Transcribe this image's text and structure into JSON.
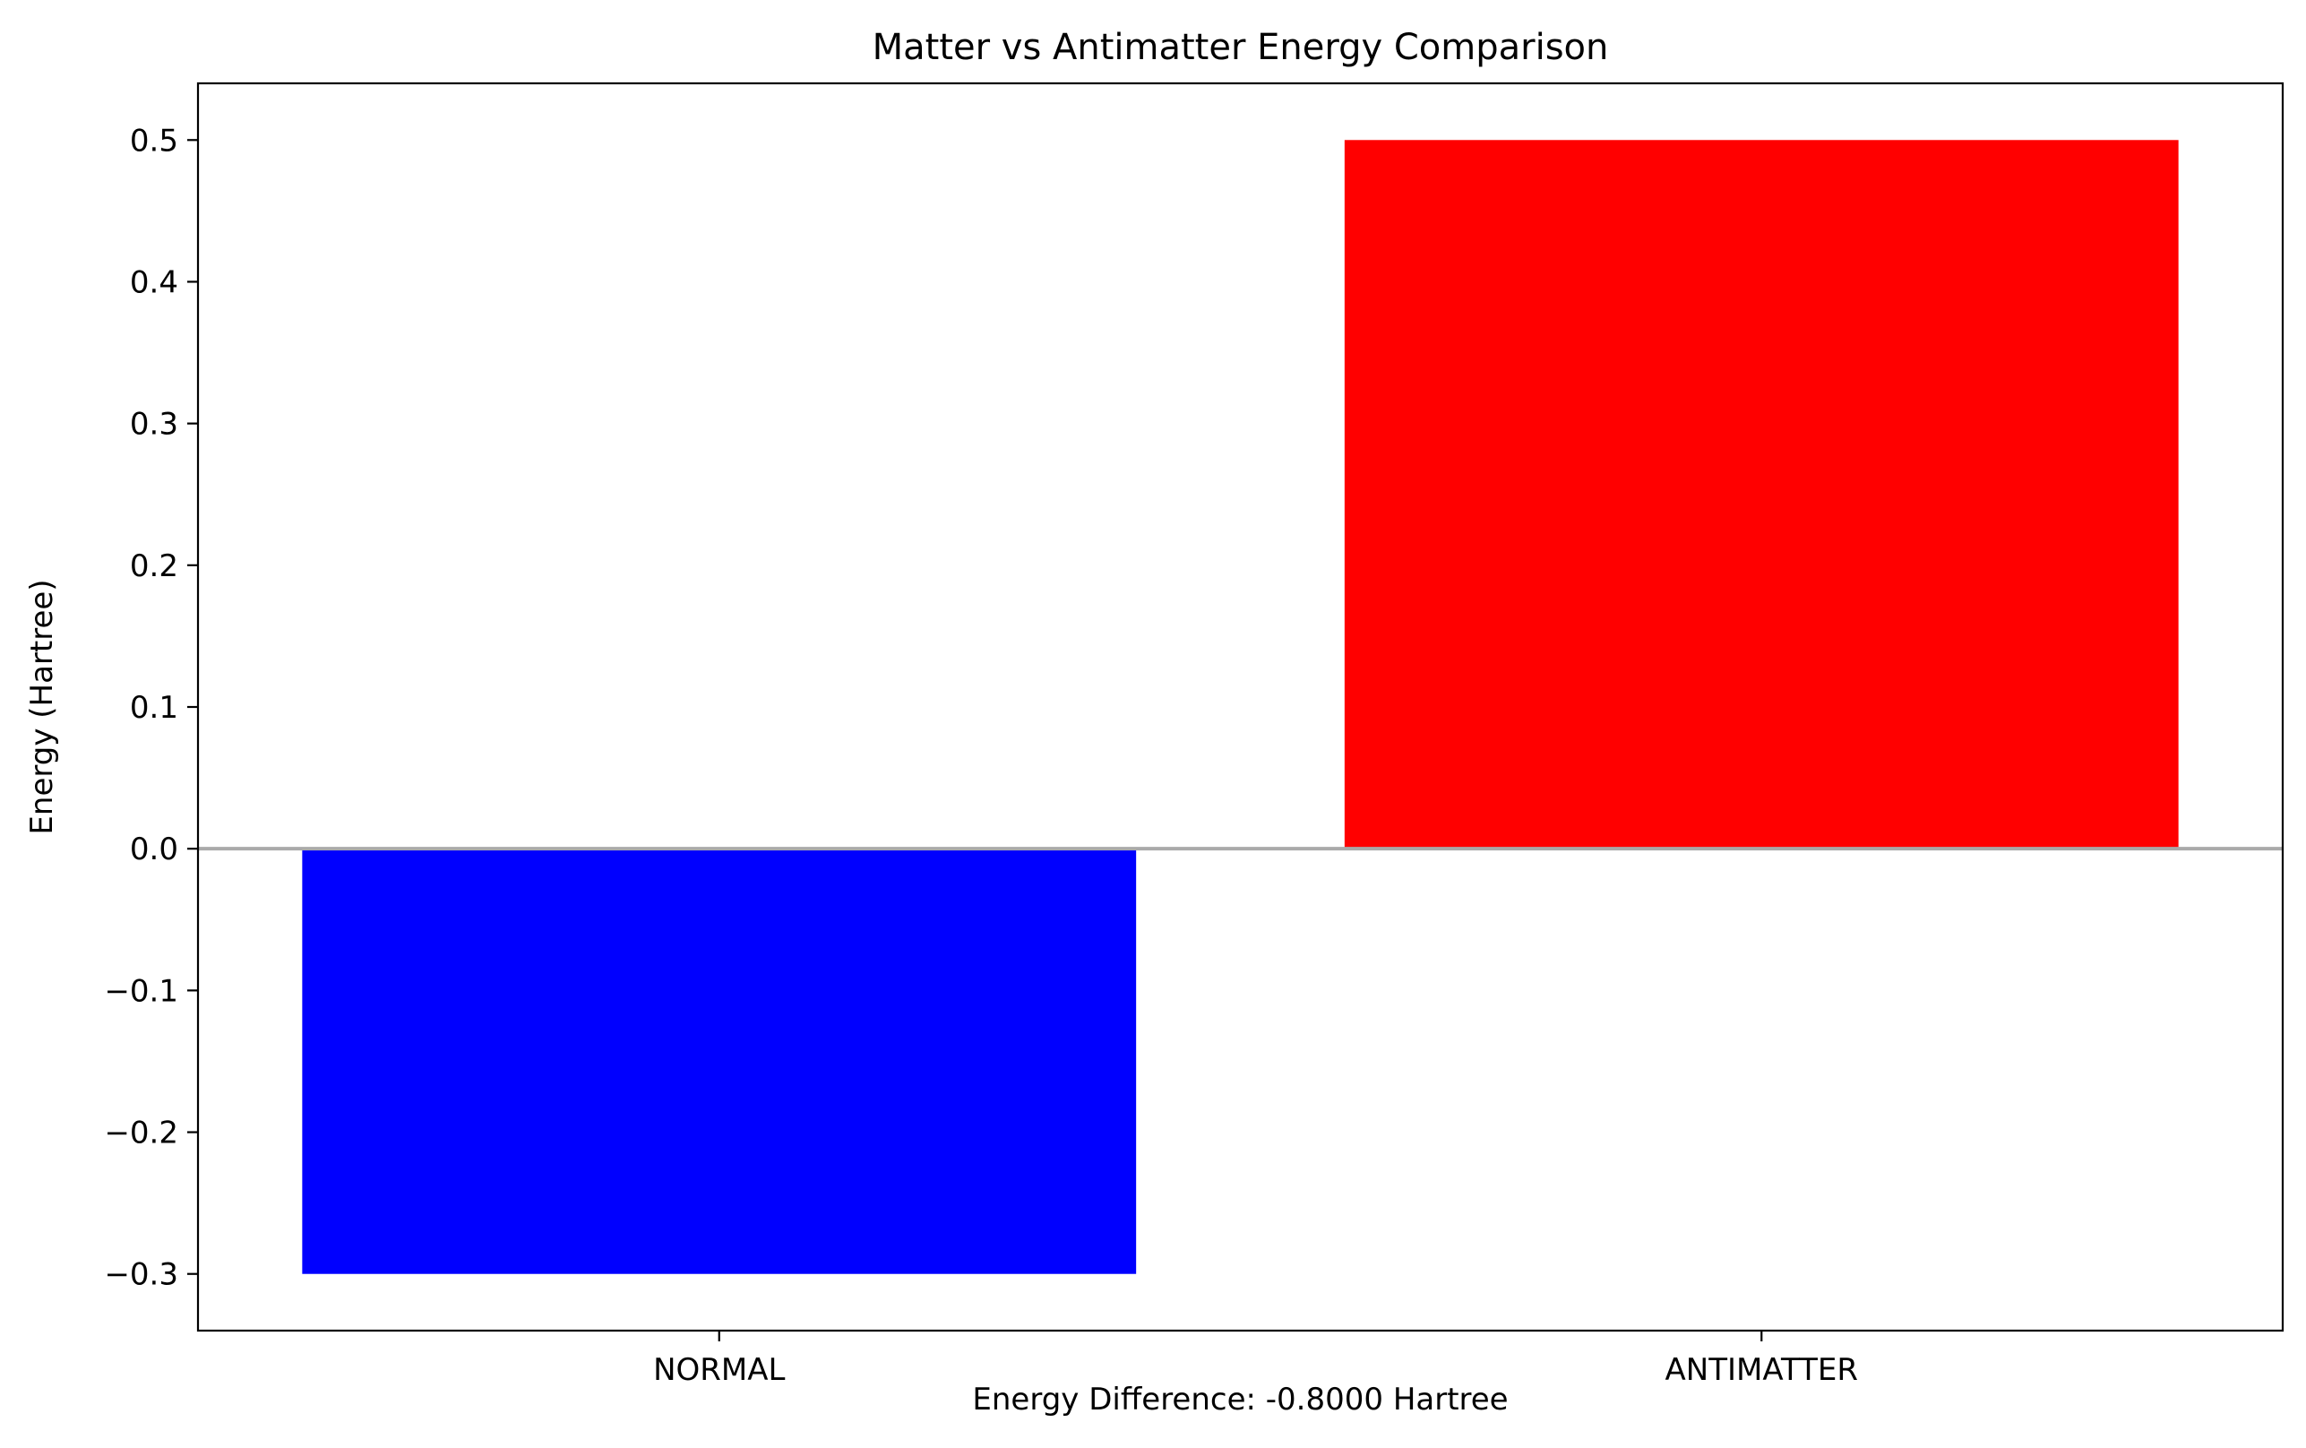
{
  "chart_data": {
    "type": "bar",
    "title": "Matter vs Antimatter Energy Comparison",
    "xlabel": "",
    "ylabel": "Energy (Hartree)",
    "categories": [
      "NORMAL",
      "ANTIMATTER"
    ],
    "values": [
      -0.3,
      0.5
    ],
    "colors": [
      "#0000ff",
      "#ff0000"
    ],
    "ylim": [
      -0.34,
      0.54
    ],
    "yticks": [
      -0.3,
      -0.2,
      -0.1,
      0.0,
      0.1,
      0.2,
      0.3,
      0.4,
      0.5
    ],
    "ytick_labels": [
      "−0.3",
      "−0.2",
      "−0.1",
      "0.0",
      "0.1",
      "0.2",
      "0.3",
      "0.4",
      "0.5"
    ],
    "zero_line": true,
    "zero_line_color": "#aaaaaa",
    "grid": false,
    "annotation": "Energy Difference: -0.8000 Hartree"
  }
}
